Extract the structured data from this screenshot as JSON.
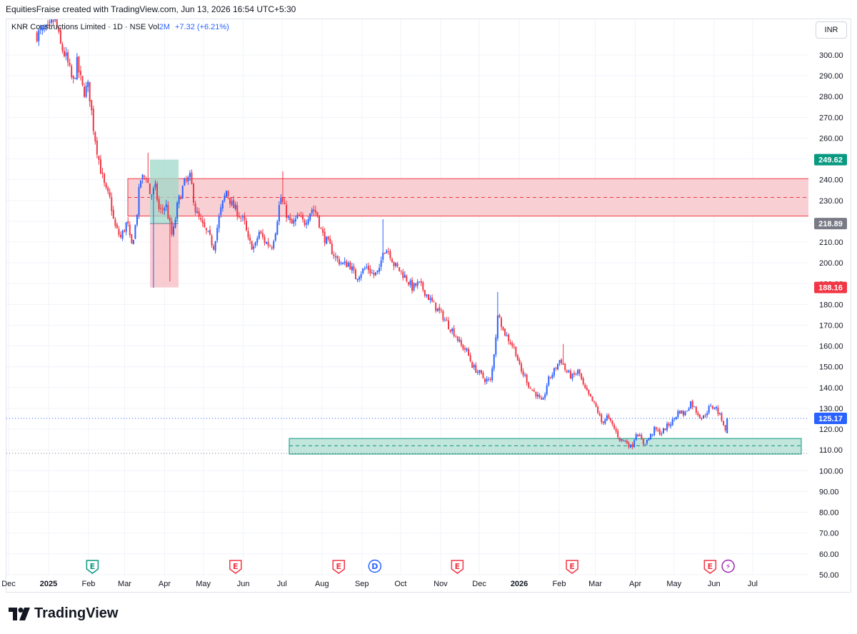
{
  "header": {
    "attribution": "EquitiesFraise created with TradingView.com, Jun 13, 2026 16:54 UTC+5:30"
  },
  "legend": {
    "symbol": "KNR Constructions Limited · 1D · NSE",
    "vol_label": "Vol",
    "vol_value": "2M",
    "change": "+7.32 (+6.21%)"
  },
  "currency": "INR",
  "colors": {
    "up": "#2962ff",
    "down": "#f23645",
    "resistance_fill": "#f7c8cc",
    "support_fill": "#b7e1d6"
  },
  "chart_data": {
    "type": "candlestick",
    "ylim": [
      50,
      310
    ],
    "y_ticks": [
      300.0,
      290.0,
      280.0,
      270.0,
      260.0,
      250.0,
      240.0,
      230.0,
      220.0,
      210.0,
      200.0,
      190.0,
      180.0,
      170.0,
      160.0,
      150.0,
      140.0,
      130.0,
      120.0,
      110.0,
      100.0,
      90.0,
      80.0,
      70.0,
      60.0,
      50.0
    ],
    "x_ticks": [
      "Dec",
      "2025",
      "Feb",
      "Mar",
      "Apr",
      "May",
      "Jun",
      "Jul",
      "Aug",
      "Sep",
      "Oct",
      "Nov",
      "Dec",
      "2026",
      "Feb",
      "Mar",
      "Apr",
      "May",
      "Jun",
      "Jul"
    ],
    "bold_x_ticks": [
      "2025",
      "2026"
    ],
    "last_price": "125.17",
    "price_labels": [
      {
        "value": "249.62",
        "price": 249.62,
        "color": "#089981"
      },
      {
        "value": "218.89",
        "price": 218.89,
        "color": "#787b86"
      },
      {
        "value": "188.16",
        "price": 188.16,
        "color": "#f23645"
      },
      {
        "value": "125.17",
        "price": 125.17,
        "color": "#2962ff"
      }
    ],
    "resistance_zone": {
      "top": 240.5,
      "bottom": 222.5,
      "mid": 231.5
    },
    "support_zone": {
      "top": 115.5,
      "bottom": 108,
      "mid": 112
    },
    "position": {
      "entry": 218.89,
      "target": 249.62,
      "stop": 188.16
    },
    "path_points": [
      [
        "2024-12-23",
        310
      ],
      [
        "2025-01-01",
        312
      ],
      [
        "2025-01-06",
        318
      ],
      [
        "2025-01-10",
        305
      ],
      [
        "2025-01-15",
        298
      ],
      [
        "2025-01-20",
        286
      ],
      [
        "2025-01-23",
        296
      ],
      [
        "2025-01-28",
        282
      ],
      [
        "2025-02-01",
        285
      ],
      [
        "2025-02-05",
        264
      ],
      [
        "2025-02-10",
        246
      ],
      [
        "2025-02-14",
        235
      ],
      [
        "2025-02-18",
        230
      ],
      [
        "2025-02-21",
        218
      ],
      [
        "2025-02-26",
        212
      ],
      [
        "2025-03-03",
        220
      ],
      [
        "2025-03-06",
        207
      ],
      [
        "2025-03-10",
        220
      ],
      [
        "2025-03-13",
        240
      ],
      [
        "2025-03-18",
        242
      ],
      [
        "2025-03-21",
        232
      ],
      [
        "2025-03-25",
        236
      ],
      [
        "2025-03-28",
        224
      ],
      [
        "2025-04-02",
        228
      ],
      [
        "2025-04-07",
        212
      ],
      [
        "2025-04-11",
        228
      ],
      [
        "2025-04-16",
        238
      ],
      [
        "2025-04-21",
        241
      ],
      [
        "2025-04-25",
        225
      ],
      [
        "2025-04-30",
        218
      ],
      [
        "2025-05-05",
        213
      ],
      [
        "2025-05-09",
        208
      ],
      [
        "2025-05-14",
        224
      ],
      [
        "2025-05-19",
        235
      ],
      [
        "2025-05-23",
        228
      ],
      [
        "2025-05-28",
        224
      ],
      [
        "2025-06-02",
        219
      ],
      [
        "2025-06-05",
        210
      ],
      [
        "2025-06-10",
        207
      ],
      [
        "2025-06-13",
        215
      ],
      [
        "2025-06-18",
        210
      ],
      [
        "2025-06-23",
        208
      ],
      [
        "2025-06-26",
        216
      ],
      [
        "2025-06-30",
        232
      ],
      [
        "2025-07-03",
        226
      ],
      [
        "2025-07-08",
        218
      ],
      [
        "2025-07-14",
        222
      ],
      [
        "2025-07-18",
        219
      ],
      [
        "2025-07-24",
        226
      ],
      [
        "2025-07-28",
        224
      ],
      [
        "2025-08-01",
        214
      ],
      [
        "2025-08-07",
        208
      ],
      [
        "2025-08-12",
        202
      ],
      [
        "2025-08-18",
        199
      ],
      [
        "2025-08-22",
        200
      ],
      [
        "2025-08-27",
        193
      ],
      [
        "2025-09-01",
        196
      ],
      [
        "2025-09-05",
        198
      ],
      [
        "2025-09-10",
        194
      ],
      [
        "2025-09-15",
        196
      ],
      [
        "2025-09-17",
        207
      ],
      [
        "2025-09-22",
        206
      ],
      [
        "2025-09-26",
        199
      ],
      [
        "2025-10-01",
        196
      ],
      [
        "2025-10-06",
        192
      ],
      [
        "2025-10-10",
        188
      ],
      [
        "2025-10-15",
        190
      ],
      [
        "2025-10-20",
        186
      ],
      [
        "2025-10-24",
        182
      ],
      [
        "2025-10-29",
        178
      ],
      [
        "2025-11-03",
        174
      ],
      [
        "2025-11-07",
        170
      ],
      [
        "2025-11-12",
        166
      ],
      [
        "2025-11-17",
        160
      ],
      [
        "2025-11-21",
        158
      ],
      [
        "2025-11-26",
        150
      ],
      [
        "2025-12-01",
        147
      ],
      [
        "2025-12-05",
        144
      ],
      [
        "2025-12-10",
        143
      ],
      [
        "2025-12-13",
        160
      ],
      [
        "2025-12-16",
        178
      ],
      [
        "2025-12-19",
        168
      ],
      [
        "2025-12-23",
        164
      ],
      [
        "2025-12-29",
        158
      ],
      [
        "2026-01-02",
        148
      ],
      [
        "2026-01-06",
        145
      ],
      [
        "2026-01-09",
        140
      ],
      [
        "2026-01-14",
        137
      ],
      [
        "2026-01-19",
        132
      ],
      [
        "2026-01-23",
        143
      ],
      [
        "2026-01-28",
        148
      ],
      [
        "2026-02-02",
        154
      ],
      [
        "2026-02-06",
        148
      ],
      [
        "2026-02-11",
        145
      ],
      [
        "2026-02-16",
        148
      ],
      [
        "2026-02-20",
        140
      ],
      [
        "2026-02-25",
        135
      ],
      [
        "2026-03-02",
        130
      ],
      [
        "2026-03-06",
        123
      ],
      [
        "2026-03-10",
        126
      ],
      [
        "2026-03-16",
        120
      ],
      [
        "2026-03-20",
        115
      ],
      [
        "2026-03-25",
        114
      ],
      [
        "2026-03-29",
        111
      ],
      [
        "2026-04-02",
        119
      ],
      [
        "2026-04-07",
        113
      ],
      [
        "2026-04-11",
        115
      ],
      [
        "2026-04-16",
        120
      ],
      [
        "2026-04-21",
        118
      ],
      [
        "2026-04-25",
        121
      ],
      [
        "2026-04-30",
        124
      ],
      [
        "2026-05-05",
        129
      ],
      [
        "2026-05-09",
        127
      ],
      [
        "2026-05-14",
        133
      ],
      [
        "2026-05-19",
        128
      ],
      [
        "2026-05-23",
        125
      ],
      [
        "2026-05-28",
        130
      ],
      [
        "2026-06-02",
        131
      ],
      [
        "2026-06-05",
        127
      ],
      [
        "2026-06-08",
        124
      ],
      [
        "2026-06-10",
        118
      ],
      [
        "2026-06-12",
        125.17
      ]
    ],
    "spikes": [
      [
        "2025-03-20",
        253
      ],
      [
        "2025-03-24",
        188
      ],
      [
        "2025-04-04",
        191
      ],
      [
        "2025-07-01",
        244
      ],
      [
        "2025-09-18",
        221
      ],
      [
        "2025-12-16",
        186
      ],
      [
        "2026-02-04",
        161
      ]
    ],
    "event_markers": [
      {
        "date": "2025-02-04",
        "label": "E",
        "kind": "earnings-positive"
      },
      {
        "date": "2025-05-26",
        "label": "E",
        "kind": "earnings-negative"
      },
      {
        "date": "2025-08-14",
        "label": "E",
        "kind": "earnings-negative"
      },
      {
        "date": "2025-09-11",
        "label": "D",
        "kind": "dividend"
      },
      {
        "date": "2025-11-14",
        "label": "E",
        "kind": "earnings-negative"
      },
      {
        "date": "2026-02-11",
        "label": "E",
        "kind": "earnings-negative"
      },
      {
        "date": "2026-05-29",
        "label": "E",
        "kind": "earnings-negative"
      },
      {
        "date": "2026-06-12",
        "label": "⚡",
        "kind": "split"
      }
    ]
  },
  "footer": {
    "brand": "TradingView"
  }
}
